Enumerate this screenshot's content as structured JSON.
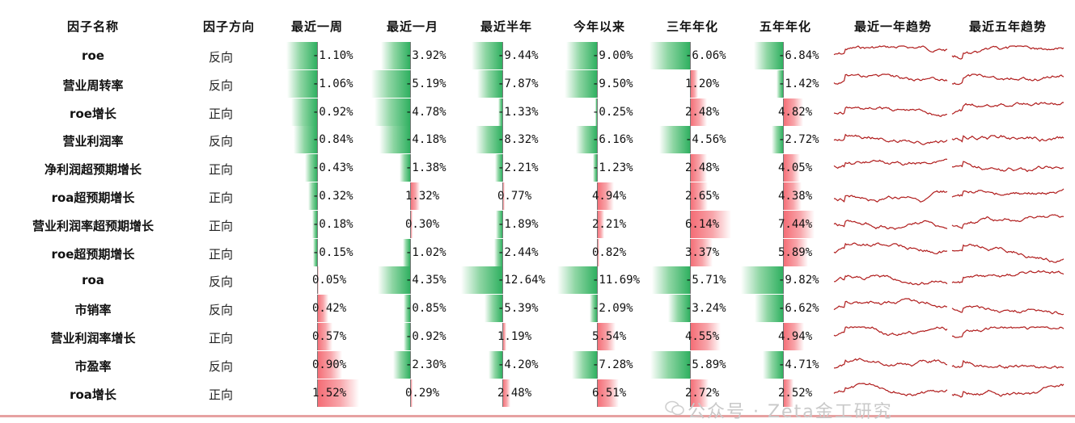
{
  "chart_data": {
    "type": "table",
    "columns": [
      "因子名称",
      "因子方向",
      "最近一周",
      "最近一月",
      "最近半年",
      "今年以来",
      "三年年化",
      "五年年化",
      "最近一年趋势",
      "最近五年趋势"
    ],
    "rows": [
      {
        "name": "roe",
        "direction": "反向",
        "values": [
          "-1.10%",
          "-3.92%",
          "-9.44%",
          "-9.00%",
          "-6.06%",
          "-6.84%"
        ],
        "nums": [
          -1.1,
          -3.92,
          -9.44,
          -9.0,
          -6.06,
          -6.84
        ]
      },
      {
        "name": "营业周转率",
        "direction": "反向",
        "values": [
          "-1.06%",
          "-5.19%",
          "-7.87%",
          "-9.50%",
          "1.20%",
          "-1.42%"
        ],
        "nums": [
          -1.06,
          -5.19,
          -7.87,
          -9.5,
          1.2,
          -1.42
        ]
      },
      {
        "name": "roe增长",
        "direction": "正向",
        "values": [
          "-0.92%",
          "-4.78%",
          "-1.33%",
          "-0.25%",
          "2.48%",
          "4.82%"
        ],
        "nums": [
          -0.92,
          -4.78,
          -1.33,
          -0.25,
          2.48,
          4.82
        ]
      },
      {
        "name": "营业利润率",
        "direction": "反向",
        "values": [
          "-0.84%",
          "-4.18%",
          "-8.32%",
          "-6.16%",
          "-4.56%",
          "-2.72%"
        ],
        "nums": [
          -0.84,
          -4.18,
          -8.32,
          -6.16,
          -4.56,
          -2.72
        ]
      },
      {
        "name": "净利润超预期增长",
        "direction": "正向",
        "values": [
          "-0.43%",
          "-1.38%",
          "-2.21%",
          "-1.23%",
          "2.48%",
          "4.05%"
        ],
        "nums": [
          -0.43,
          -1.38,
          -2.21,
          -1.23,
          2.48,
          4.05
        ]
      },
      {
        "name": "roa超预期增长",
        "direction": "正向",
        "values": [
          "-0.32%",
          "1.32%",
          "0.77%",
          "4.94%",
          "2.65%",
          "4.38%"
        ],
        "nums": [
          -0.32,
          1.32,
          0.77,
          4.94,
          2.65,
          4.38
        ]
      },
      {
        "name": "营业利润率超预期增长",
        "direction": "正向",
        "values": [
          "-0.18%",
          "0.30%",
          "-1.89%",
          "2.21%",
          "6.14%",
          "7.44%"
        ],
        "nums": [
          -0.18,
          0.3,
          -1.89,
          2.21,
          6.14,
          7.44
        ]
      },
      {
        "name": "roe超预期增长",
        "direction": "正向",
        "values": [
          "-0.15%",
          "-1.02%",
          "-2.44%",
          "0.82%",
          "3.37%",
          "5.89%"
        ],
        "nums": [
          -0.15,
          -1.02,
          -2.44,
          0.82,
          3.37,
          5.89
        ]
      },
      {
        "name": "roa",
        "direction": "反向",
        "values": [
          "0.05%",
          "-4.35%",
          "-12.64%",
          "-11.69%",
          "-5.71%",
          "-9.82%"
        ],
        "nums": [
          0.05,
          -4.35,
          -12.64,
          -11.69,
          -5.71,
          -9.82
        ]
      },
      {
        "name": "市销率",
        "direction": "反向",
        "values": [
          "0.42%",
          "-0.85%",
          "-5.39%",
          "-2.09%",
          "-3.24%",
          "-6.62%"
        ],
        "nums": [
          0.42,
          -0.85,
          -5.39,
          -2.09,
          -3.24,
          -6.62
        ]
      },
      {
        "name": "营业利润率增长",
        "direction": "正向",
        "values": [
          "0.57%",
          "-0.92%",
          "1.19%",
          "5.54%",
          "4.55%",
          "4.94%"
        ],
        "nums": [
          0.57,
          -0.92,
          1.19,
          5.54,
          4.55,
          4.94
        ]
      },
      {
        "name": "市盈率",
        "direction": "反向",
        "values": [
          "0.90%",
          "-2.30%",
          "-4.20%",
          "-7.28%",
          "-5.89%",
          "-4.71%"
        ],
        "nums": [
          0.9,
          -2.3,
          -4.2,
          -7.28,
          -5.89,
          -4.71
        ]
      },
      {
        "name": "roa增长",
        "direction": "正向",
        "values": [
          "1.52%",
          "0.29%",
          "2.48%",
          "6.51%",
          "2.72%",
          "2.52%"
        ],
        "nums": [
          1.52,
          0.29,
          2.48,
          6.51,
          2.72,
          2.52
        ]
      }
    ],
    "colors": {
      "negative": "#2fb060",
      "positive": "#f46a73",
      "sparkline": "#b01c1c"
    }
  },
  "watermark": "公众号 · Zeta金工研究"
}
